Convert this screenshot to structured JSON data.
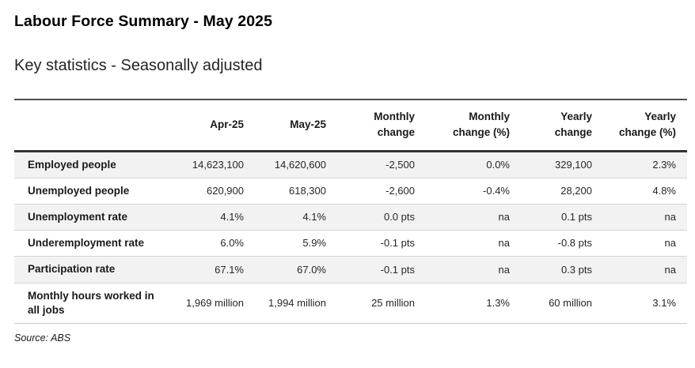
{
  "page": {
    "title": "Labour Force Summary - May 2025",
    "subtitle": "Key statistics - Seasonally adjusted",
    "source_note": "Source: ABS"
  },
  "table": {
    "columns": [
      "",
      "Apr-25",
      "May-25",
      "Monthly change",
      "Monthly change (%)",
      "Yearly change",
      "Yearly change (%)"
    ],
    "rows": [
      {
        "label": "Employed people",
        "values": [
          "14,623,100",
          "14,620,600",
          "-2,500",
          "0.0%",
          "329,100",
          "2.3%"
        ]
      },
      {
        "label": "Unemployed people",
        "values": [
          "620,900",
          "618,300",
          "-2,600",
          "-0.4%",
          "28,200",
          "4.8%"
        ]
      },
      {
        "label": "Unemployment rate",
        "values": [
          "4.1%",
          "4.1%",
          "0.0 pts",
          "na",
          "0.1 pts",
          "na"
        ]
      },
      {
        "label": "Underemployment rate",
        "values": [
          "6.0%",
          "5.9%",
          "-0.1 pts",
          "na",
          "-0.8 pts",
          "na"
        ]
      },
      {
        "label": "Participation rate",
        "values": [
          "67.1%",
          "67.0%",
          "-0.1 pts",
          "na",
          "0.3 pts",
          "na"
        ]
      },
      {
        "label": "Monthly hours worked in all jobs",
        "values": [
          "1,969 million",
          "1,994 million",
          "25 million",
          "1.3%",
          "60 million",
          "3.1%"
        ]
      }
    ]
  },
  "colors": {
    "row_stripe": "#f2f2f2",
    "table_top_border": "#4d4d4d",
    "header_bottom_border": "#333333",
    "row_separator": "#d4d4d4",
    "text": "#262626"
  }
}
